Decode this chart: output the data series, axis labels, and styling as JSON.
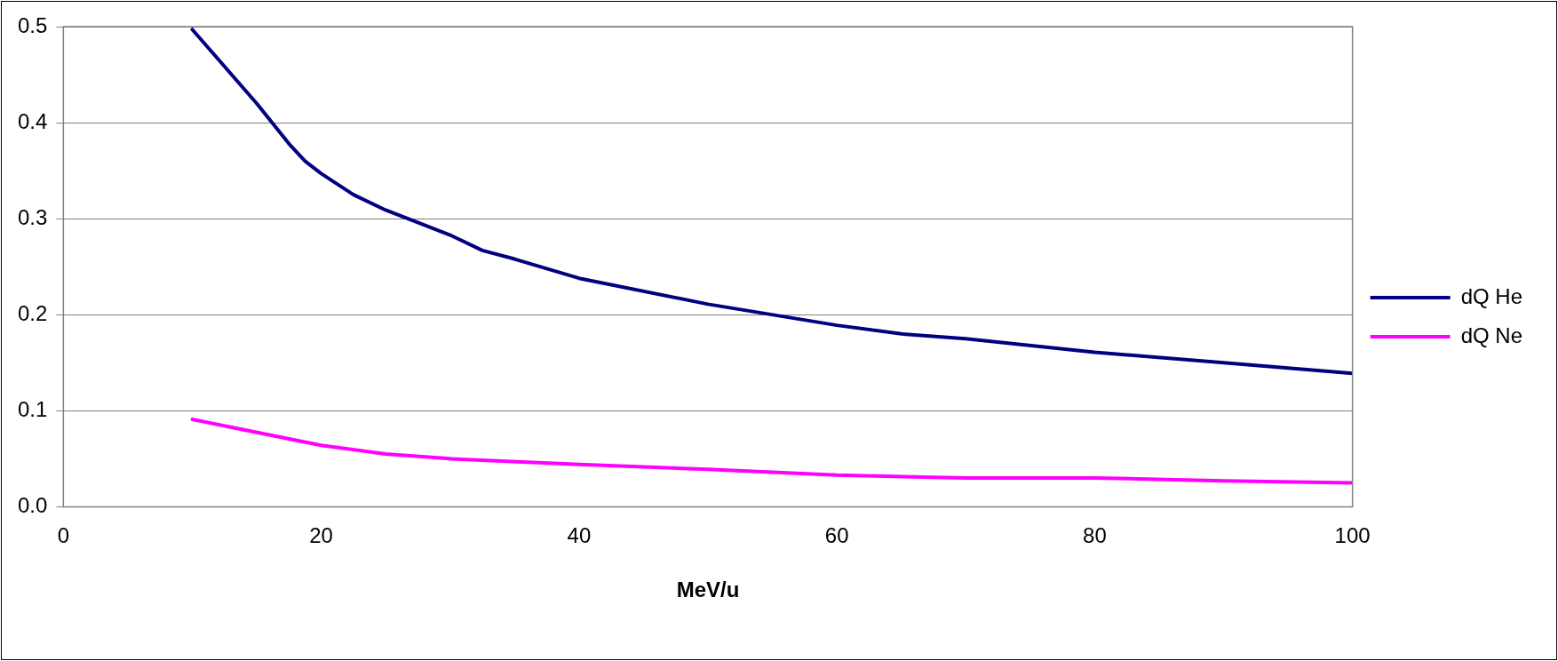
{
  "chart_data": {
    "type": "line",
    "xlabel": "MeV/u",
    "xlim": [
      0,
      100
    ],
    "xticks": [
      0,
      20,
      40,
      60,
      80,
      100
    ],
    "ylim": [
      0,
      0.5
    ],
    "yticks": [
      {
        "value": 0,
        "label": "0.0"
      },
      0.1,
      0.2,
      0.3,
      0.4,
      0.5
    ],
    "grid": "y",
    "legend": "right",
    "marker": "none",
    "line_style": "solid",
    "series": [
      {
        "name": "dQ He",
        "color": "#000080",
        "x": [
          10,
          15,
          17.5,
          18.75,
          20,
          22.5,
          25,
          30,
          32.5,
          35,
          40,
          50,
          60,
          65,
          70,
          80,
          90,
          100
        ],
        "values": [
          0.497,
          0.42,
          0.378,
          0.36,
          0.347,
          0.325,
          0.309,
          0.283,
          0.267,
          0.258,
          0.238,
          0.211,
          0.189,
          0.18,
          0.175,
          0.161,
          0.15,
          0.139
        ]
      },
      {
        "name": "dQ Ne",
        "color": "#ff00ff",
        "x": [
          10,
          20,
          25,
          30,
          40,
          50,
          60,
          70,
          80,
          90,
          100
        ],
        "values": [
          0.091,
          0.064,
          0.055,
          0.05,
          0.044,
          0.039,
          0.033,
          0.03,
          0.03,
          0.027,
          0.025
        ]
      }
    ]
  }
}
